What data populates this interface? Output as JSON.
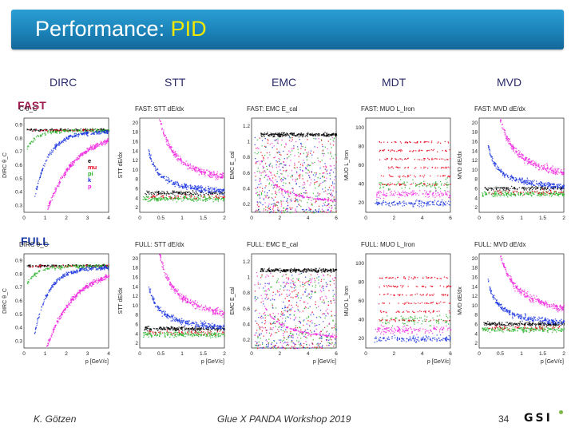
{
  "slide": {
    "title_main": "Performance: ",
    "title_accent": "PID",
    "detectors": [
      "DIRC",
      "STT",
      "EMC",
      "MDT",
      "MVD"
    ],
    "rows": [
      "FAST",
      "FULL"
    ],
    "footer": {
      "author": "K. Götzen",
      "event": "Glue X PANDA Workshop 2019",
      "page": "34",
      "logo_text": "GSI"
    }
  },
  "panels": {
    "fast": [
      {
        "title": "C θ_C",
        "ylabel": "DIRC θ_C",
        "xlabel": "",
        "yticks": [
          "0.3",
          "0.4",
          "0.5",
          "0.6",
          "0.7",
          "0.8",
          "0.9"
        ],
        "xticks": [
          "0",
          "1",
          "2",
          "3",
          "4"
        ]
      },
      {
        "title": "FAST: STT dE/dx",
        "ylabel": "STT dE/dx",
        "xlabel": "",
        "yticks": [
          "2",
          "4",
          "6",
          "8",
          "10",
          "12",
          "14",
          "16",
          "18",
          "20"
        ],
        "xticks": [
          "0",
          "0.5",
          "1",
          "1.5",
          "2"
        ]
      },
      {
        "title": "FAST: EMC E_cal",
        "ylabel": "EMC E_cal",
        "xlabel": "",
        "yticks": [
          "0.2",
          "0.4",
          "0.6",
          "0.8",
          "1",
          "1.2"
        ],
        "xticks": [
          "0",
          "2",
          "4",
          "6"
        ]
      },
      {
        "title": "FAST: MUO L_Iron",
        "ylabel": "MUO L_Iron",
        "xlabel": "",
        "yticks": [
          "20",
          "40",
          "60",
          "80",
          "100"
        ],
        "xticks": [
          "0",
          "2",
          "4",
          "6"
        ]
      },
      {
        "title": "FAST: MVD dE/dx",
        "ylabel": "MVD dE/dx",
        "xlabel": "",
        "yticks": [
          "2",
          "4",
          "6",
          "8",
          "10",
          "12",
          "14",
          "16",
          "18",
          "20"
        ],
        "xticks": [
          "0",
          "0.5",
          "1",
          "1.5",
          "2"
        ]
      }
    ],
    "full": [
      {
        "title": "DIRC θ_C",
        "ylabel": "DIRC θ_C",
        "xlabel": "p [GeV/c]",
        "yticks": [
          "0.3",
          "0.4",
          "0.5",
          "0.6",
          "0.7",
          "0.8",
          "0.9"
        ],
        "xticks": [
          "0",
          "1",
          "2",
          "3",
          "4"
        ]
      },
      {
        "title": "FULL: STT dE/dx",
        "ylabel": "STT dE/dx",
        "xlabel": "p [GeV/c]",
        "yticks": [
          "2",
          "4",
          "6",
          "8",
          "10",
          "12",
          "14",
          "16",
          "18",
          "20"
        ],
        "xticks": [
          "0",
          "0.5",
          "1",
          "1.5",
          "2"
        ]
      },
      {
        "title": "FULL: EMC E_cal",
        "ylabel": "EMC E_cal",
        "xlabel": "p [GeV/c]",
        "yticks": [
          "0.2",
          "0.4",
          "0.6",
          "0.8",
          "1",
          "1.2"
        ],
        "xticks": [
          "0",
          "2",
          "4",
          "6"
        ]
      },
      {
        "title": "FULL: MUO L_Iron",
        "ylabel": "MUO L_Iron",
        "xlabel": "p [GeV/c]",
        "yticks": [
          "20",
          "40",
          "60",
          "80",
          "100"
        ],
        "xticks": [
          "0",
          "2",
          "4",
          "6"
        ]
      },
      {
        "title": "FULL: MVD dE/dx",
        "ylabel": "MVD dE/dx",
        "xlabel": "p [GeV/c]",
        "yticks": [
          "2",
          "4",
          "6",
          "8",
          "10",
          "12",
          "14",
          "16",
          "18",
          "20"
        ],
        "xticks": [
          "0",
          "0.5",
          "1",
          "1.5",
          "2"
        ]
      }
    ]
  },
  "legend": [
    {
      "label": "e",
      "color": "#000000"
    },
    {
      "label": "mu",
      "color": "#e8001c"
    },
    {
      "label": "pi",
      "color": "#21b021"
    },
    {
      "label": "k",
      "color": "#1530e0"
    },
    {
      "label": "p",
      "color": "#f028e0"
    }
  ],
  "colors": {
    "e": "#000000",
    "mu": "#e8001c",
    "pi": "#21b021",
    "k": "#1530e0",
    "p": "#f028e0"
  }
}
